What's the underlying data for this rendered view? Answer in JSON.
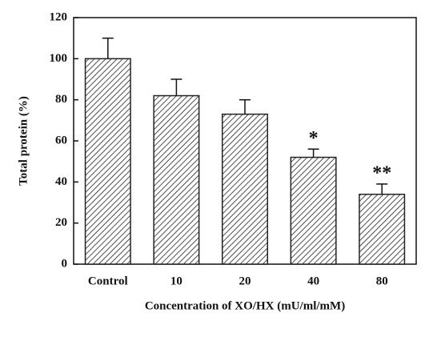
{
  "chart_data": {
    "type": "bar",
    "xlabel": "Concentration of XO/HX (mU/ml/mM)",
    "ylabel": "Total protein  (%)",
    "categories": [
      "Control",
      "10",
      "20",
      "40",
      "80"
    ],
    "values": [
      100,
      82,
      73,
      52,
      34
    ],
    "errors": [
      10,
      8,
      7,
      4,
      5
    ],
    "significance": [
      null,
      null,
      null,
      "*",
      "**"
    ],
    "color": "#222222",
    "ylim": [
      0,
      120
    ],
    "yticks": [
      0,
      20,
      40,
      60,
      80,
      100,
      120
    ],
    "grid": false
  }
}
